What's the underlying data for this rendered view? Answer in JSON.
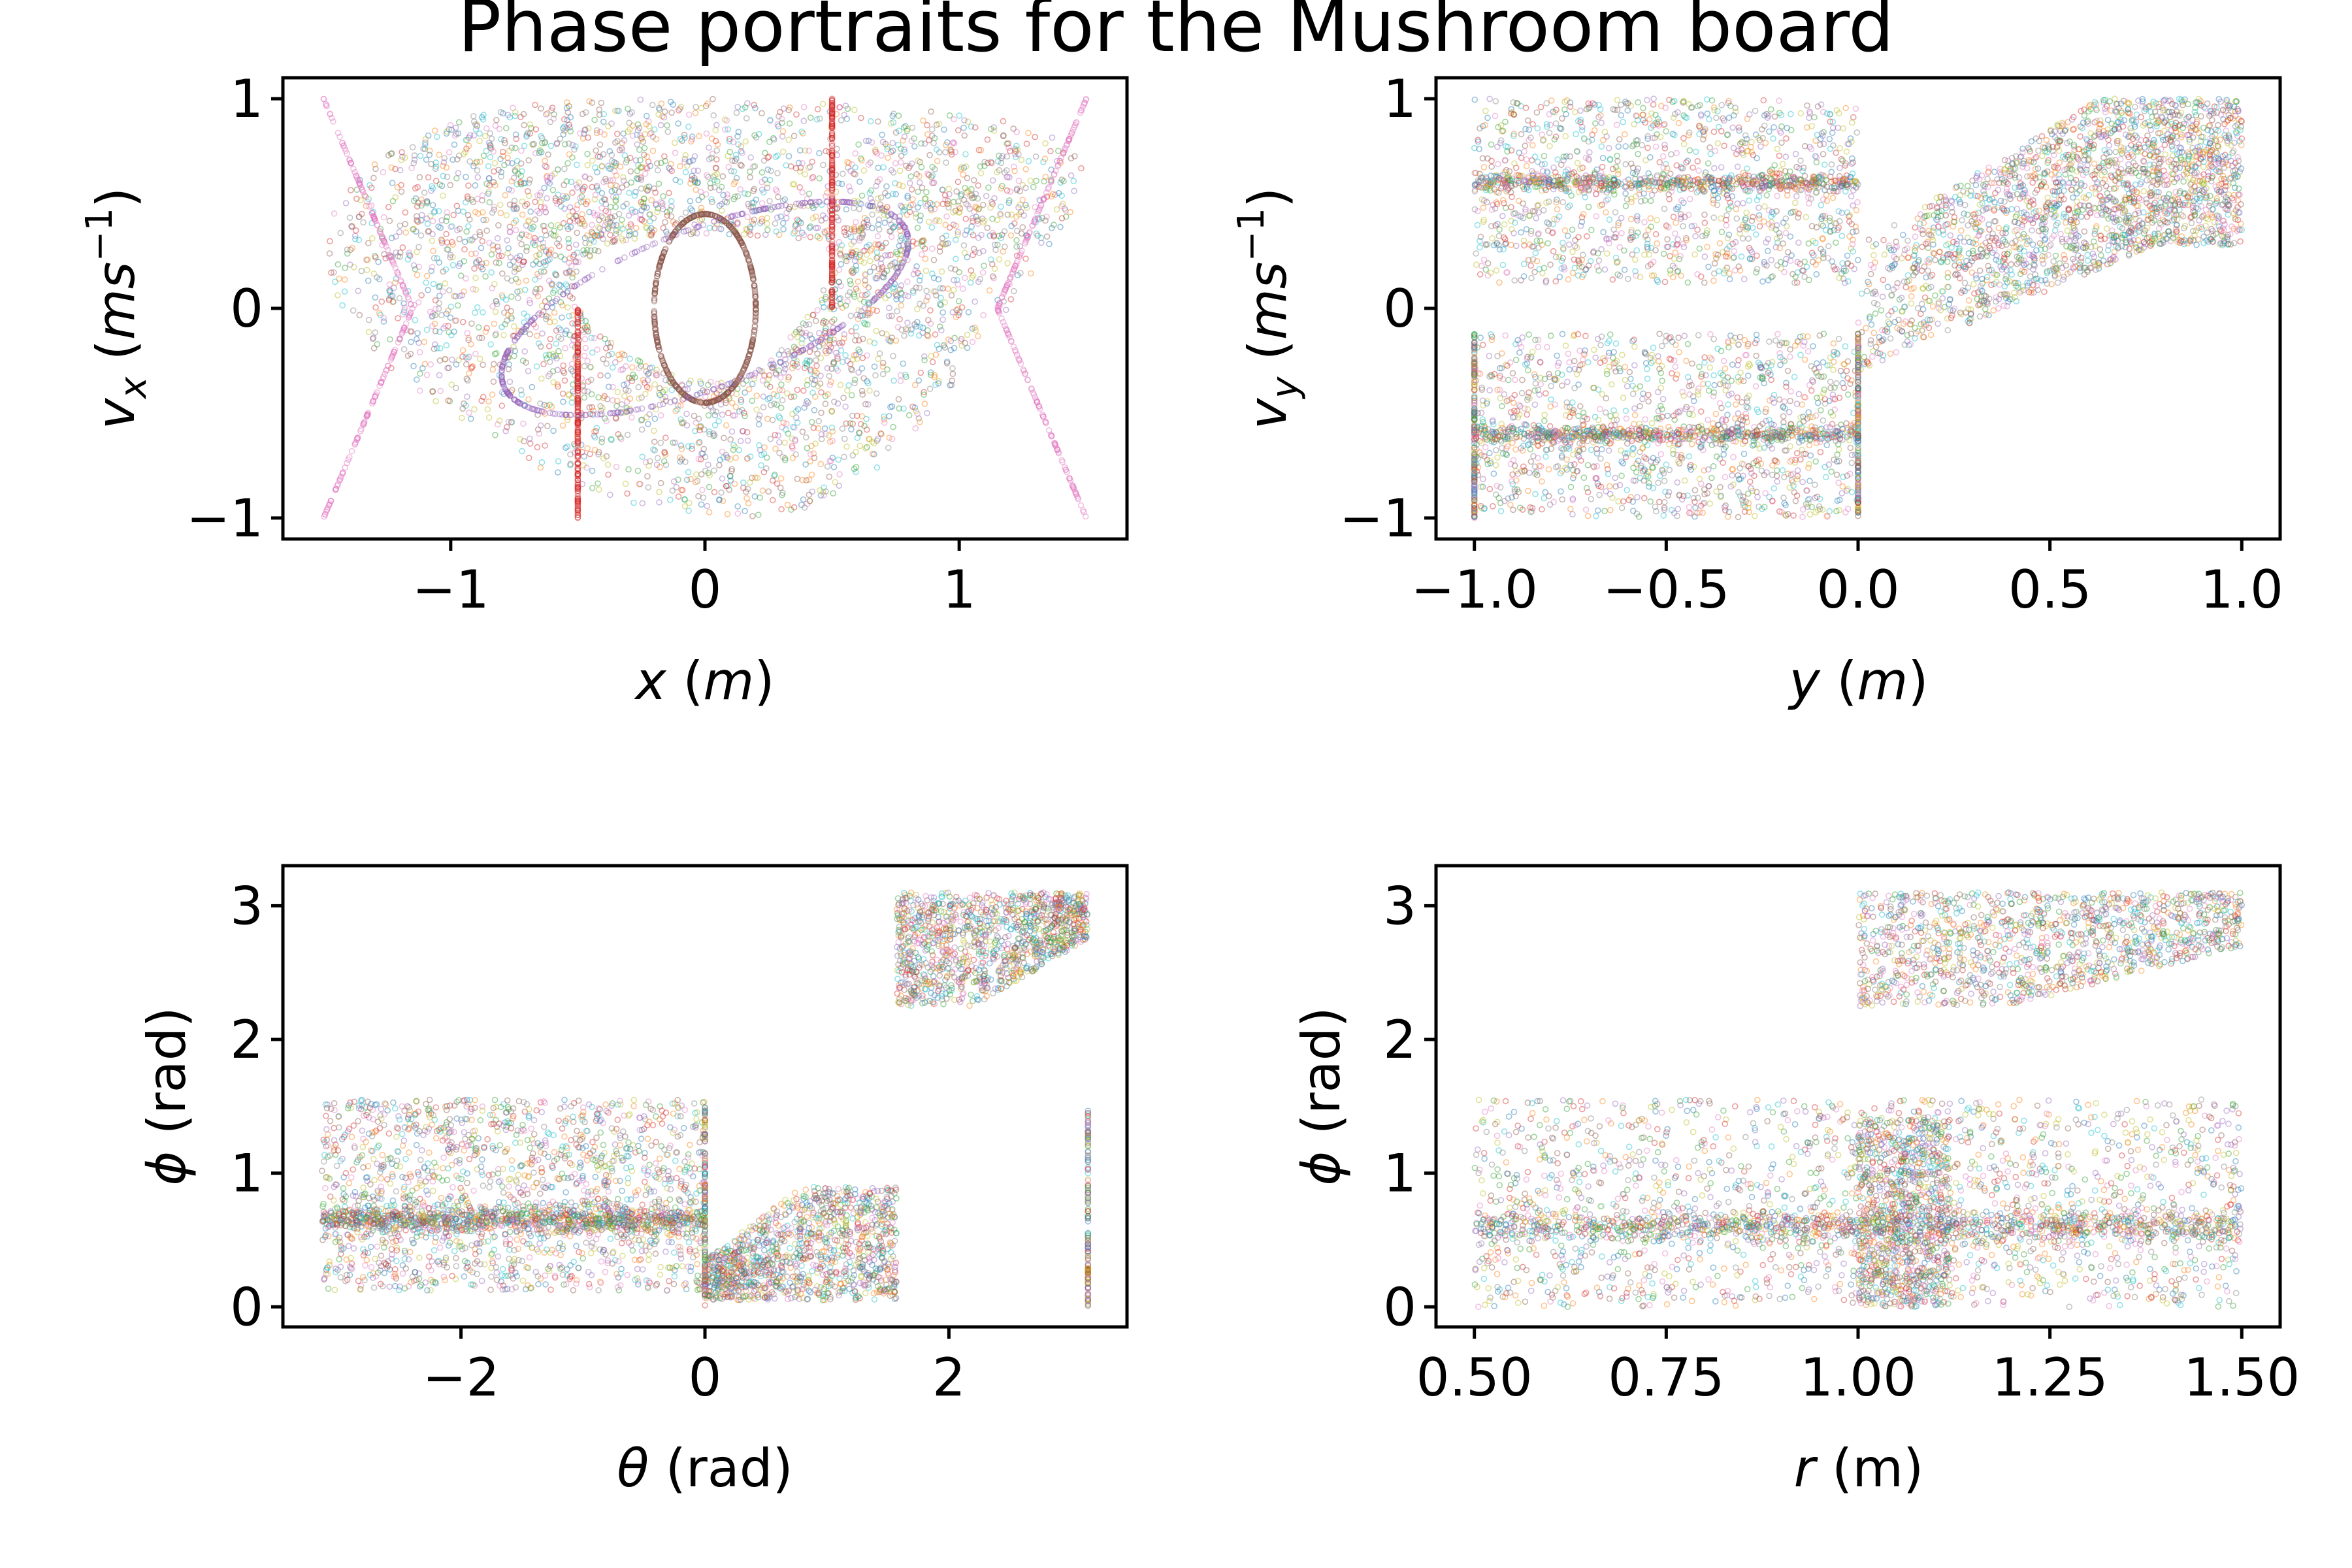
{
  "figure": {
    "title": "Phase portraits for the Mushroom board"
  },
  "palette": [
    "#1f77b4",
    "#ff7f0e",
    "#2ca02c",
    "#d62728",
    "#9467bd",
    "#8c564b",
    "#e377c2",
    "#7f7f7f",
    "#bcbd22",
    "#17becf"
  ],
  "chart_data": [
    {
      "type": "scatter",
      "xlabel": "x (m)",
      "ylabel": "v_x (ms^-1)",
      "xlim": [
        -1.66,
        1.66
      ],
      "ylim": [
        -1.1,
        1.1
      ],
      "xticks": [
        -1,
        0,
        1
      ],
      "xtick_labels": [
        "−1",
        "0",
        "1"
      ],
      "yticks": [
        -1,
        0,
        1
      ],
      "ytick_labels": [
        "−1",
        "0",
        "1"
      ],
      "grid": false,
      "description_points": {
        "outer_loop_x": [
          -1.5,
          -1.3,
          -0.5,
          0.5,
          1.3,
          1.5
        ],
        "outer_loop_y": [
          -1.0,
          -0.85,
          -0.8,
          0.8,
          0.85,
          1.0
        ],
        "central_ellipse": {
          "center": [
            0,
            0
          ],
          "rx": 0.2,
          "ry": 0.45
        },
        "vertical_segments": [
          {
            "x": -0.5,
            "y": [
              -1,
              0
            ]
          },
          {
            "x": 0.5,
            "y": [
              0,
              1
            ]
          }
        ]
      }
    },
    {
      "type": "scatter",
      "xlabel": "y (m)",
      "ylabel": "v_y (ms^-1)",
      "xlim": [
        -1.1,
        1.1
      ],
      "ylim": [
        -1.1,
        1.1
      ],
      "xticks": [
        -1.0,
        -0.5,
        0.0,
        0.5,
        1.0
      ],
      "xtick_labels": [
        "−1.0",
        "−0.5",
        "0.0",
        "0.5",
        "1.0"
      ],
      "yticks": [
        -1,
        0,
        1
      ],
      "ytick_labels": [
        "−1",
        "0",
        "1"
      ],
      "grid": false,
      "description_points": {
        "upper_band": {
          "x": [
            -1.0,
            0.0
          ],
          "y": [
            0.12,
            1.0
          ],
          "dense_y": 0.6
        },
        "lower_band": {
          "x": [
            -1.0,
            0.0
          ],
          "y": [
            -1.0,
            -0.12
          ],
          "dense_y": -0.6
        },
        "right_flow": {
          "x": [
            0.0,
            1.0
          ],
          "y_start": [
            -0.3,
            0.3
          ],
          "y_end": [
            0.3,
            1.0
          ]
        }
      }
    },
    {
      "type": "scatter",
      "xlabel": "θ (rad)",
      "ylabel": "ϕ (rad)",
      "xlim": [
        -3.46,
        3.46
      ],
      "ylim": [
        -0.15,
        3.3
      ],
      "xticks": [
        -2,
        0,
        2
      ],
      "xtick_labels": [
        "−2",
        "0",
        "2"
      ],
      "yticks": [
        0,
        1,
        2,
        3
      ],
      "ytick_labels": [
        "0",
        "1",
        "2",
        "3"
      ],
      "grid": false,
      "description_points": {
        "left_block": {
          "x": [
            -3.14,
            0.0
          ],
          "y": [
            0.12,
            1.55
          ]
        },
        "middle_block": {
          "x": [
            0.0,
            1.57
          ],
          "y": [
            0.05,
            0.9
          ]
        },
        "top_right_block": {
          "x": [
            1.57,
            3.14
          ],
          "y": [
            2.25,
            3.1
          ]
        },
        "vertical_line": {
          "x": 3.14,
          "y": [
            0,
            1.5
          ]
        }
      }
    },
    {
      "type": "scatter",
      "xlabel": "r (m)",
      "ylabel": "ϕ (rad)",
      "xlim": [
        0.45,
        1.55
      ],
      "ylim": [
        -0.15,
        3.3
      ],
      "xticks": [
        0.5,
        0.75,
        1.0,
        1.25,
        1.5
      ],
      "xtick_labels": [
        "0.50",
        "0.75",
        "1.00",
        "1.25",
        "1.50"
      ],
      "yticks": [
        0,
        1,
        2,
        3
      ],
      "ytick_labels": [
        "0",
        "1",
        "2",
        "3"
      ],
      "grid": false,
      "description_points": {
        "bottom_block": {
          "x": [
            0.5,
            1.5
          ],
          "y": [
            0.0,
            1.55
          ]
        },
        "top_block": {
          "x": [
            1.0,
            1.5
          ],
          "y": [
            2.25,
            3.1
          ]
        },
        "dense_column": {
          "x": [
            1.0,
            1.12
          ],
          "y": [
            0.0,
            1.4
          ]
        }
      }
    }
  ]
}
